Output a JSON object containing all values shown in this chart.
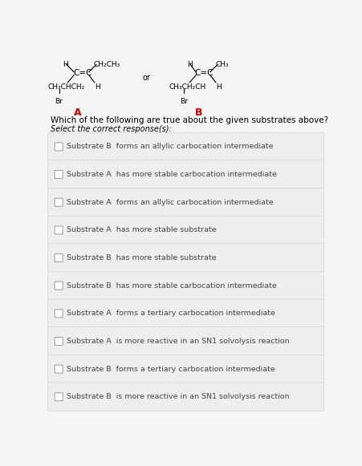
{
  "bg_color": "#f5f5f5",
  "question": "Which of the following are true about the given substrates above?",
  "select_text": "Select the correct response(s):",
  "label_A": "A",
  "label_B": "B",
  "label_color": "#cc0000",
  "options": [
    "Substrate B  forms an allylic carbocation intermediate",
    "Substrate A  has more stable carbocation intermediate",
    "Substrate A  forms an allylic carbocation intermediate",
    "Substrate A  has more stable substrate",
    "Substrate B  has more stable substrate",
    "Substrate B  has more stable carbocation intermediate",
    "Substrate A  forms a tertiary carbocation intermediate",
    "Substrate A  is more reactive in an SN1 solvolysis reaction",
    "Substrate B  forms a tertiary carbocation intermediate",
    "Substrate B  is more reactive in an SN1 solvolysis reaction"
  ],
  "option_bg": "#eeeeee",
  "text_color": "#444444",
  "font_size_question": 7.5,
  "font_size_select": 7.0,
  "font_size_option": 6.8,
  "font_size_structure": 6.5,
  "font_size_label": 9
}
